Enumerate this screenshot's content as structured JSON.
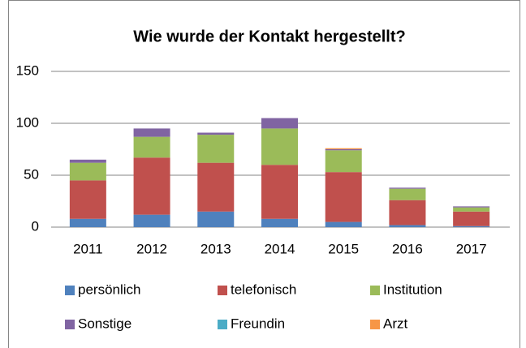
{
  "chart_data": {
    "type": "bar",
    "stacked": true,
    "title": "Wie wurde der Kontakt hergestellt?",
    "categories": [
      "2011",
      "2012",
      "2013",
      "2014",
      "2015",
      "2016",
      "2017"
    ],
    "series": [
      {
        "name": "persönlich",
        "color": "#4f81bd",
        "values": [
          8,
          12,
          15,
          8,
          5,
          2,
          1
        ]
      },
      {
        "name": "telefonisch",
        "color": "#c0504d",
        "values": [
          37,
          55,
          47,
          52,
          48,
          24,
          14
        ]
      },
      {
        "name": "Institution",
        "color": "#9bbb59",
        "values": [
          17,
          20,
          27,
          35,
          21,
          11,
          4
        ]
      },
      {
        "name": "Sonstige",
        "color": "#8064a2",
        "values": [
          3,
          8,
          2,
          10,
          1,
          1,
          1
        ]
      },
      {
        "name": "Freundin",
        "color": "#4bacc6",
        "values": [
          0,
          0,
          0,
          0,
          0,
          0,
          0
        ]
      },
      {
        "name": "Arzt",
        "color": "#f79646",
        "values": [
          0,
          0,
          0,
          0,
          1,
          0,
          0
        ]
      }
    ],
    "ylim": [
      0,
      150
    ],
    "yticks": [
      0,
      50,
      100,
      150
    ],
    "grid": true
  }
}
